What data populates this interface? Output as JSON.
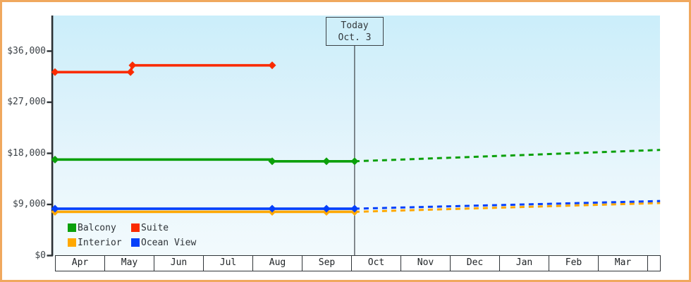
{
  "window": {
    "frame_border_color": "#f0a85e",
    "background_color": "#ffffff"
  },
  "chart_data": {
    "type": "line",
    "title": "",
    "currency_unit": "USD",
    "x_axis": {
      "months": [
        "Apr",
        "May",
        "Jun",
        "Jul",
        "Aug",
        "Sep",
        "Oct",
        "Nov",
        "Dec",
        "Jan",
        "Feb",
        "Mar"
      ]
    },
    "y_axis": {
      "ticks": [
        {
          "value": 0,
          "label": "$0"
        },
        {
          "value": 9000,
          "label": "$9,000"
        },
        {
          "value": 18000,
          "label": "$18,000"
        },
        {
          "value": 27000,
          "label": "$27,000"
        },
        {
          "value": 36000,
          "label": "$36,000"
        }
      ],
      "range": [
        0,
        42000
      ],
      "grid": false
    },
    "today_marker": {
      "line1": "Today",
      "line2": "Oct. 3",
      "month_position": 6.07
    },
    "x_range_months": [
      0,
      12.26
    ],
    "legend_position": "bottom-left-inside",
    "plot_background": {
      "top": "#cbeefa",
      "bottom": "#f2fafd"
    },
    "series": [
      {
        "name": "Balcony",
        "color": "#0ba00b",
        "history": [
          [
            0,
            16900
          ],
          [
            4.4,
            16900
          ],
          [
            4.4,
            16600
          ],
          [
            5.5,
            16600
          ],
          [
            6.07,
            16600
          ]
        ],
        "markers": [
          [
            0,
            16900
          ],
          [
            4.4,
            16600
          ],
          [
            5.5,
            16600
          ],
          [
            6.07,
            16600
          ]
        ],
        "forecast": [
          [
            6.07,
            16600
          ],
          [
            12.26,
            18600
          ]
        ]
      },
      {
        "name": "Suite",
        "color": "#fa2b00",
        "history": [
          [
            0,
            32300
          ],
          [
            1.53,
            32300
          ],
          [
            1.57,
            33500
          ],
          [
            4.4,
            33500
          ]
        ],
        "markers": [
          [
            0,
            32300
          ],
          [
            1.53,
            32300
          ],
          [
            1.57,
            33500
          ],
          [
            4.4,
            33500
          ]
        ],
        "forecast": []
      },
      {
        "name": "Interior",
        "color": "#ffa800",
        "history": [
          [
            0,
            7700
          ],
          [
            4.4,
            7700
          ],
          [
            5.5,
            7700
          ],
          [
            6.07,
            7700
          ]
        ],
        "markers": [
          [
            0,
            7700
          ],
          [
            4.4,
            7700
          ],
          [
            5.5,
            7700
          ],
          [
            6.07,
            7700
          ]
        ],
        "forecast": [
          [
            6.07,
            7700
          ],
          [
            12.26,
            9250
          ]
        ]
      },
      {
        "name": "Ocean View",
        "color": "#0540fa",
        "history": [
          [
            0,
            8250
          ],
          [
            4.4,
            8250
          ],
          [
            5.5,
            8250
          ],
          [
            6.07,
            8250
          ]
        ],
        "markers": [
          [
            0,
            8250
          ],
          [
            4.4,
            8250
          ],
          [
            5.5,
            8250
          ],
          [
            6.07,
            8250
          ]
        ],
        "forecast": [
          [
            6.07,
            8250
          ],
          [
            12.26,
            9600
          ]
        ]
      }
    ],
    "legend": [
      {
        "label": "Balcony",
        "color": "#0ba00b"
      },
      {
        "label": "Suite",
        "color": "#fa2b00"
      },
      {
        "label": "Interior",
        "color": "#ffa800"
      },
      {
        "label": "Ocean View",
        "color": "#0540fa"
      }
    ]
  }
}
